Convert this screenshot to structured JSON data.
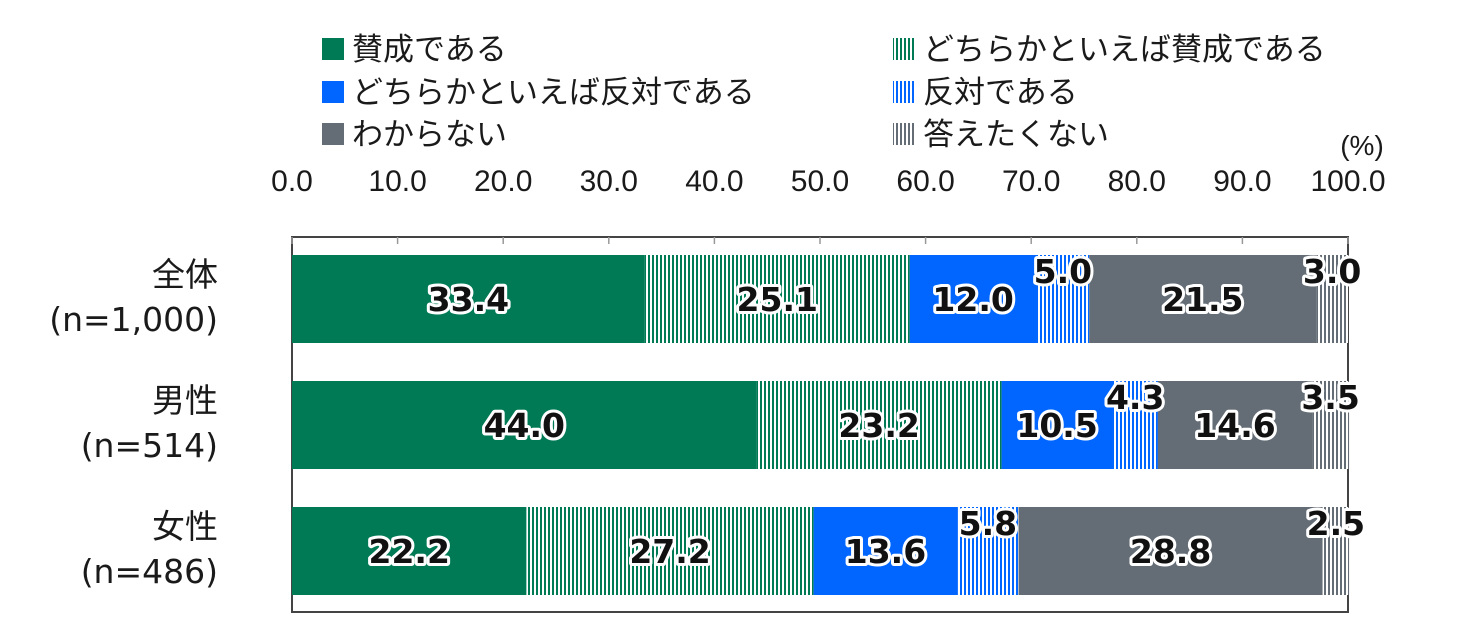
{
  "chart_data": {
    "type": "bar",
    "orientation": "horizontal",
    "stacked": true,
    "unit_label": "(%)",
    "xlim": [
      0,
      100
    ],
    "x_ticks": [
      "0.0",
      "10.0",
      "20.0",
      "30.0",
      "40.0",
      "50.0",
      "60.0",
      "70.0",
      "80.0",
      "90.0",
      "100.0"
    ],
    "categories": [
      {
        "name": "全体",
        "n": "(n=1,000)"
      },
      {
        "name": "男性",
        "n": "(n=514)"
      },
      {
        "name": "女性",
        "n": "(n=486)"
      }
    ],
    "series": [
      {
        "name": "賛成である",
        "color": "#007a55",
        "pattern": "solid",
        "values": [
          33.4,
          44.0,
          22.2
        ],
        "labels": [
          "33.4",
          "44.0",
          "22.2"
        ]
      },
      {
        "name": "どちらかといえば賛成である",
        "color": "#007a55",
        "pattern": "vertical-stripes",
        "values": [
          25.1,
          23.2,
          27.2
        ],
        "labels": [
          "25.1",
          "23.2",
          "27.2"
        ]
      },
      {
        "name": "どちらかといえば反対である",
        "color": "#0066ff",
        "pattern": "solid",
        "values": [
          12.0,
          10.5,
          13.6
        ],
        "labels": [
          "12.0",
          "10.5",
          "13.6"
        ]
      },
      {
        "name": "反対である",
        "color": "#0066ff",
        "pattern": "vertical-stripes",
        "values": [
          5.0,
          4.3,
          5.8
        ],
        "labels": [
          "5.0",
          "4.3",
          "5.8"
        ]
      },
      {
        "name": "わからない",
        "color": "#646d76",
        "pattern": "solid",
        "values": [
          21.5,
          14.6,
          28.8
        ],
        "labels": [
          "21.5",
          "14.6",
          "28.8"
        ]
      },
      {
        "name": "答えたくない",
        "color": "#646d76",
        "pattern": "vertical-stripes",
        "values": [
          3.0,
          3.5,
          2.5
        ],
        "labels": [
          "3.0",
          "3.5",
          "2.5"
        ]
      }
    ],
    "legend_position": "top"
  }
}
